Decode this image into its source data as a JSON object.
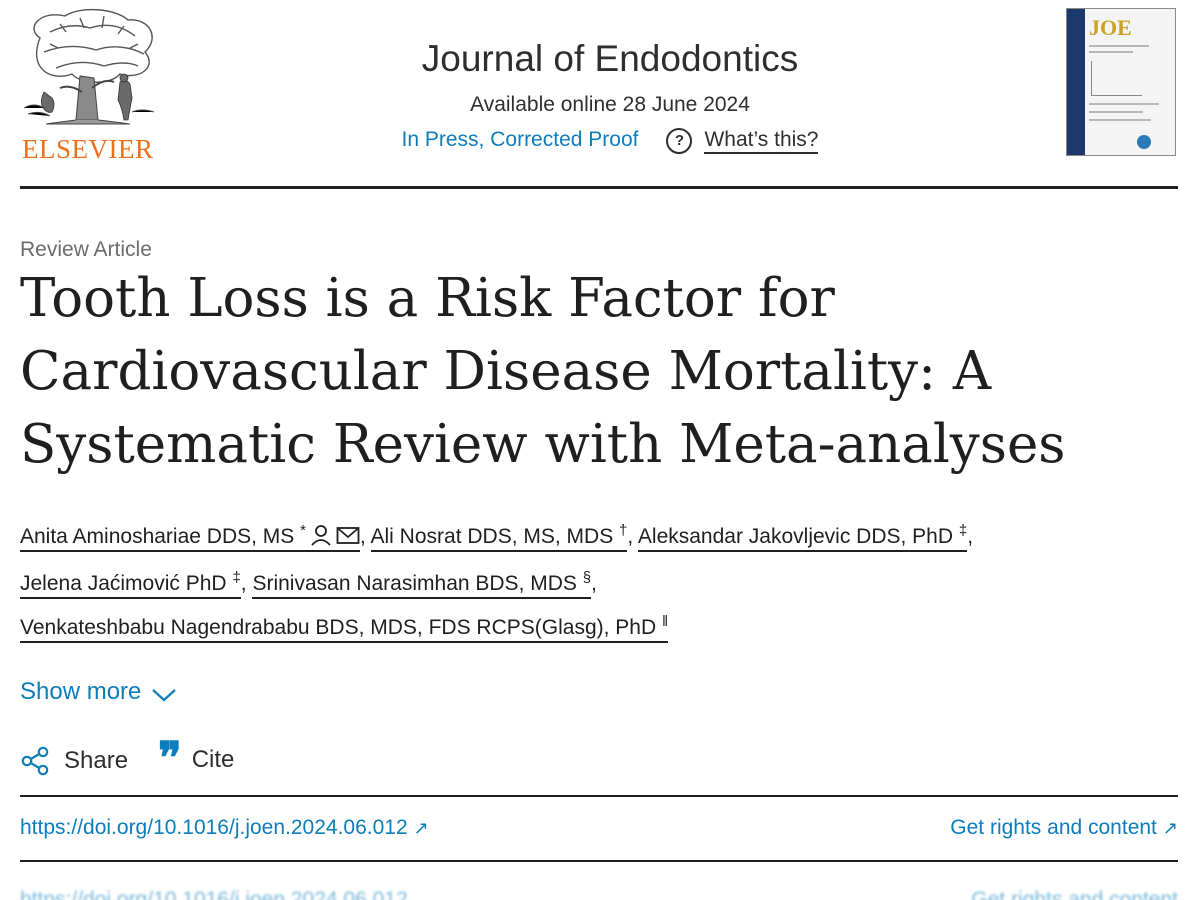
{
  "header": {
    "publisher_logo_text": "ELSEVIER",
    "journal_name": "Journal of Endodontics",
    "available_online": "Available online 28 June 2024",
    "status": "In Press, Corrected Proof",
    "help_label": "What’s this?",
    "cover_title": "JOE"
  },
  "article": {
    "type": "Review Article",
    "title": "Tooth Loss is a Risk Factor for Cardiovascular Disease Mortality: A Systematic Review with Meta-analyses",
    "authors": [
      {
        "name": "Anita Aminoshariae DDS, MS",
        "mark": "*"
      },
      {
        "name": "Ali Nosrat DDS, MS, MDS",
        "mark": "†"
      },
      {
        "name": "Aleksandar Jakovljevic DDS, PhD",
        "mark": "‡"
      },
      {
        "name": "Jelena Jaćimović PhD",
        "mark": "‡"
      },
      {
        "name": "Srinivasan Narasimhan BDS, MDS",
        "mark": "§"
      },
      {
        "name": "Venkateshbabu Nagendrababu BDS, MDS, FDS RCPS(Glasg), PhD",
        "mark": "‖"
      }
    ],
    "show_more": "Show more",
    "share_label": "Share",
    "cite_label": "Cite",
    "doi": "https://doi.org/10.1016/j.joen.2024.06.012",
    "rights": "Get rights and content"
  },
  "colors": {
    "link": "#0c7dbb",
    "elsevier_orange": "#e9711c",
    "text": "#1f1f1f"
  }
}
